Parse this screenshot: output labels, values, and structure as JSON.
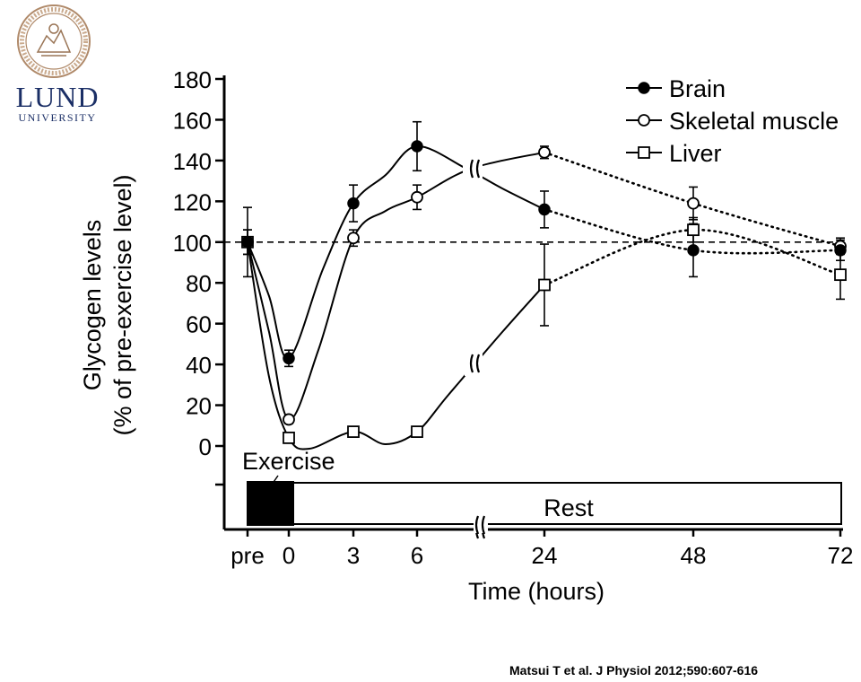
{
  "logo": {
    "name_line1": "LUND",
    "name_line2": "UNIVERSITY",
    "seal_text": "SIGILLUM UNIVERSITATIS CAROLINAE LUNDENSIS"
  },
  "citation": "Matsui T et al. J Physiol 2012;590:607-616",
  "chart_data": {
    "type": "line",
    "ylabel_line1": "Glycogen levels",
    "ylabel_line2": "(% of pre-exercise level)",
    "xlabel": "Time (hours)",
    "ylim": [
      0,
      180
    ],
    "yticks": [
      0,
      20,
      40,
      60,
      80,
      100,
      120,
      140,
      160,
      180
    ],
    "x_ticks": [
      "pre",
      "0",
      "3",
      "6",
      "24",
      "48",
      "72"
    ],
    "reference_line": 100,
    "legend_position": "top-right",
    "phase_labels": {
      "exercise": "Exercise",
      "rest": "Rest"
    },
    "series": [
      {
        "name": "Brain",
        "marker": "filled-circle",
        "x": [
          "pre",
          "0",
          "3",
          "6",
          "24",
          "48",
          "72"
        ],
        "y": [
          100,
          43,
          119,
          147,
          116,
          96,
          96
        ],
        "err": [
          17,
          4,
          9,
          12,
          9,
          13,
          5
        ]
      },
      {
        "name": "Skeletal muscle",
        "marker": "open-circle",
        "x": [
          "pre",
          "0",
          "3",
          "6",
          "24",
          "48",
          "72"
        ],
        "y": [
          100,
          13,
          102,
          122,
          144,
          119,
          98
        ],
        "err": [
          6,
          2,
          4,
          6,
          3,
          8,
          4
        ]
      },
      {
        "name": "Liver",
        "marker": "open-square",
        "x": [
          "pre",
          "0",
          "3",
          "6",
          "24",
          "48",
          "72"
        ],
        "y": [
          100,
          4,
          7,
          7,
          79,
          106,
          84
        ],
        "err": [
          6,
          2,
          2,
          2,
          20,
          6,
          12
        ]
      }
    ]
  }
}
